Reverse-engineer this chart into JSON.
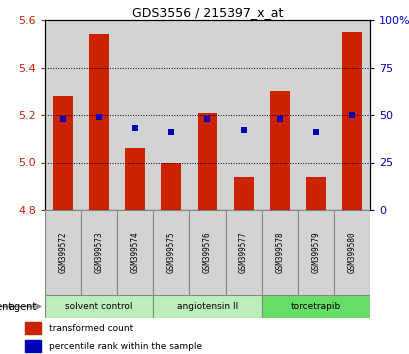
{
  "title": "GDS3556 / 215397_x_at",
  "samples": [
    "GSM399572",
    "GSM399573",
    "GSM399574",
    "GSM399575",
    "GSM399576",
    "GSM399577",
    "GSM399578",
    "GSM399579",
    "GSM399580"
  ],
  "bar_values": [
    5.28,
    5.54,
    5.06,
    5.0,
    5.21,
    4.94,
    5.3,
    4.94,
    5.55
  ],
  "bar_base": 4.8,
  "percentile_values": [
    48,
    49,
    43,
    41,
    48,
    42,
    48,
    41,
    50
  ],
  "ylim_left": [
    4.8,
    5.6
  ],
  "ylim_right": [
    0,
    100
  ],
  "yticks_left": [
    4.8,
    5.0,
    5.2,
    5.4,
    5.6
  ],
  "yticks_right": [
    0,
    25,
    50,
    75,
    100
  ],
  "bar_color": "#cc2200",
  "dot_color": "#0000bb",
  "groups": [
    {
      "label": "solvent control",
      "indices": [
        0,
        1,
        2
      ],
      "color": "#bbeebb"
    },
    {
      "label": "angiotensin II",
      "indices": [
        3,
        4,
        5
      ],
      "color": "#bbeebb"
    },
    {
      "label": "torcetrapib",
      "indices": [
        6,
        7,
        8
      ],
      "color": "#66dd66"
    }
  ],
  "legend_items": [
    {
      "label": "transformed count",
      "color": "#cc2200"
    },
    {
      "label": "percentile rank within the sample",
      "color": "#0000bb"
    }
  ],
  "agent_label": "agent",
  "bar_width": 0.55,
  "tick_color_left": "#cc2200",
  "tick_color_right": "#0000bb",
  "bg_sample": "#d3d3d3",
  "tick_fontsize": 8,
  "title_fontsize": 9
}
